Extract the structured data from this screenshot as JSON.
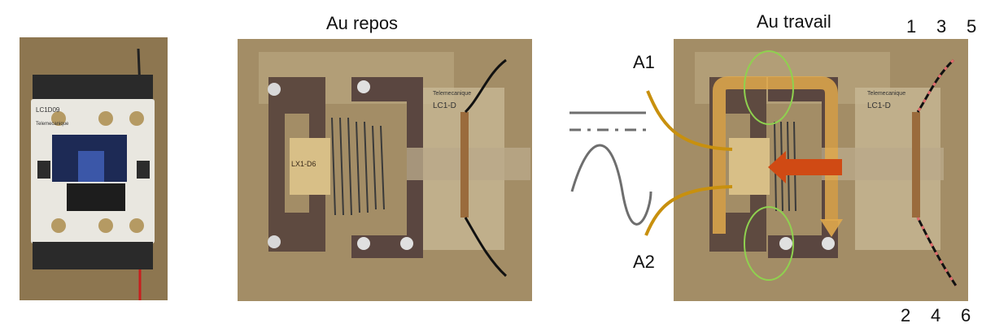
{
  "titles": {
    "rest": "Au repos",
    "work": "Au travail"
  },
  "coil_terminals": {
    "a1": "A1",
    "a2": "A2"
  },
  "power_terminals": {
    "top": [
      "1",
      "3",
      "5"
    ],
    "bottom": [
      "2",
      "4",
      "6"
    ]
  },
  "contactor_photo": {
    "model_text": "LC1D09",
    "brand_text": "Telemecanique",
    "coil_text": "LX1-D6"
  },
  "diagram_rest": {
    "brand_text": "Telemecanique",
    "model_text": "LC1-D"
  },
  "diagram_work": {
    "brand_text": "Telemecanique",
    "model_text": "LC1-D"
  },
  "supply_symbols": [
    "DC",
    "AC"
  ],
  "colors": {
    "coil_wire": "#c8900e",
    "flux_path": "#e0a94c",
    "force_arrow": "#d04a14",
    "flux_circle": "#8fd14f",
    "housing": "#a38d66",
    "symbol_gray": "#6e6e6e"
  }
}
